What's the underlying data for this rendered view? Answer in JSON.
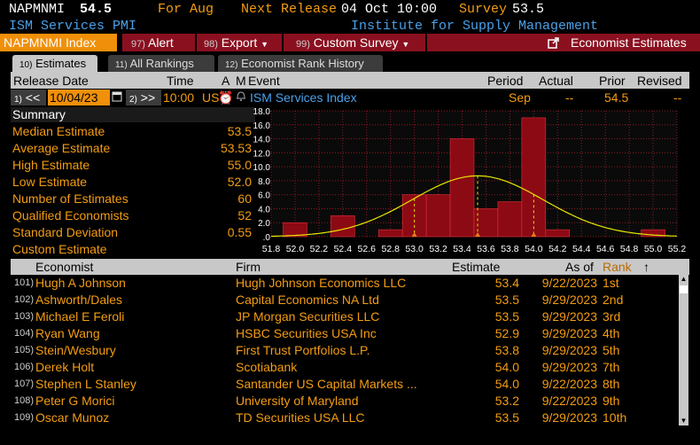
{
  "header": {
    "ticker": "NAPMNMI",
    "value": "54.5",
    "for_label": "For Aug",
    "next_release_label": "Next Release",
    "next_release_value": "04 Oct 10:00",
    "survey_label": "Survey",
    "survey_value": "53.5",
    "description": "ISM Services PMI",
    "source": "Institute for Supply Management"
  },
  "toolbar": {
    "index_label": "NAPMNMI Index",
    "alert_num": "97)",
    "alert_label": "Alert",
    "export_num": "98)",
    "export_label": "Export",
    "custom_num": "99)",
    "custom_label": "Custom Survey",
    "economist_label": "Economist Estimates"
  },
  "tabs": [
    {
      "num": "10)",
      "label": "Estimates"
    },
    {
      "num": "11)",
      "label": "All Rankings"
    },
    {
      "num": "12)",
      "label": "Economist Rank History"
    }
  ],
  "release_table": {
    "headers": {
      "release_date": "Release Date",
      "time": "Time",
      "a": "A",
      "m": "M",
      "event": "Event",
      "period": "Period",
      "actual": "Actual",
      "prior": "Prior",
      "revised": "Revised"
    },
    "row": {
      "prev_num": "1)",
      "prev": "<<",
      "date": "10/04/23",
      "next_num": "2)",
      "next": ">>",
      "time": "10:00",
      "country": "US",
      "event": "ISM Services Index",
      "period": "Sep",
      "actual": "--",
      "prior": "54.5",
      "revised": "--"
    }
  },
  "summary": {
    "title": "Summary",
    "rows": [
      {
        "label": "Median Estimate",
        "value": "53.5"
      },
      {
        "label": "Average Estimate",
        "value": "53.53"
      },
      {
        "label": "High Estimate",
        "value": "55.0"
      },
      {
        "label": "Low Estimate",
        "value": "52.0"
      },
      {
        "label": "Number of Estimates",
        "value": "60"
      },
      {
        "label": "Qualified Economists",
        "value": "52"
      },
      {
        "label": "Standard Deviation",
        "value": "0.55"
      },
      {
        "label": "Custom Estimate",
        "value": ""
      }
    ]
  },
  "chart_data": {
    "type": "bar",
    "xlabel": "",
    "ylabel": "",
    "xlim": [
      51.8,
      55.2
    ],
    "ylim": [
      0,
      18
    ],
    "x_ticks": [
      "51.8",
      "52.0",
      "52.2",
      "52.4",
      "52.6",
      "52.8",
      "53.0",
      "53.2",
      "53.4",
      "53.6",
      "53.8",
      "54.0",
      "54.2",
      "54.4",
      "54.6",
      "54.8",
      "55.0",
      "55.2"
    ],
    "y_ticks": [
      ".0",
      "2.0",
      "4.0",
      "6.0",
      "8.0",
      "10.0",
      "12.0",
      "14.0",
      "16.0",
      "18.0"
    ],
    "bins": [
      {
        "x": 52.0,
        "value": 2
      },
      {
        "x": 52.4,
        "value": 3
      },
      {
        "x": 52.8,
        "value": 1
      },
      {
        "x": 53.0,
        "value": 6
      },
      {
        "x": 53.2,
        "value": 6
      },
      {
        "x": 53.4,
        "value": 14
      },
      {
        "x": 53.6,
        "value": 4
      },
      {
        "x": 53.8,
        "value": 5
      },
      {
        "x": 54.0,
        "value": 17
      },
      {
        "x": 54.2,
        "value": 1
      },
      {
        "x": 55.0,
        "value": 1
      }
    ],
    "normal_curve": {
      "mean": 53.53,
      "std": 0.55,
      "peak": 8.7
    },
    "markers": [
      53.0,
      53.53,
      54.0
    ],
    "grid": true,
    "colors": {
      "bar": "#8c0a14",
      "bar_edge": "#e0303a",
      "curve": "#e8e800",
      "grid": "#8a1a25"
    }
  },
  "economists": {
    "headers": {
      "economist": "Economist",
      "firm": "Firm",
      "estimate": "Estimate",
      "as_of": "As of",
      "rank": "Rank",
      "sort_icon": "↑"
    },
    "rows": [
      {
        "idx": "101)",
        "name": "Hugh A Johnson",
        "firm": "Hugh Johnson Economics LLC",
        "estimate": "53.4",
        "as_of": "9/22/2023",
        "rank": "1st"
      },
      {
        "idx": "102)",
        "name": "Ashworth/Dales",
        "firm": "Capital Economics NA Ltd",
        "estimate": "53.5",
        "as_of": "9/29/2023",
        "rank": "2nd"
      },
      {
        "idx": "103)",
        "name": "Michael E Feroli",
        "firm": "JP Morgan Securities LLC",
        "estimate": "53.5",
        "as_of": "9/29/2023",
        "rank": "3rd"
      },
      {
        "idx": "104)",
        "name": "Ryan Wang",
        "firm": "HSBC Securities USA Inc",
        "estimate": "52.9",
        "as_of": "9/29/2023",
        "rank": "4th"
      },
      {
        "idx": "105)",
        "name": "Stein/Wesbury",
        "firm": "First Trust Portfolios L.P.",
        "estimate": "53.8",
        "as_of": "9/29/2023",
        "rank": "5th"
      },
      {
        "idx": "106)",
        "name": "Derek Holt",
        "firm": "Scotiabank",
        "estimate": "54.0",
        "as_of": "9/29/2023",
        "rank": "7th"
      },
      {
        "idx": "107)",
        "name": "Stephen L Stanley",
        "firm": "Santander US Capital Markets ...",
        "estimate": "54.0",
        "as_of": "9/22/2023",
        "rank": "8th"
      },
      {
        "idx": "108)",
        "name": "Peter G Morici",
        "firm": "University of Maryland",
        "estimate": "53.2",
        "as_of": "9/22/2023",
        "rank": "9th"
      },
      {
        "idx": "109)",
        "name": "Oscar Munoz",
        "firm": "TD Securities USA LLC",
        "estimate": "53.5",
        "as_of": "9/29/2023",
        "rank": "10th"
      }
    ]
  }
}
